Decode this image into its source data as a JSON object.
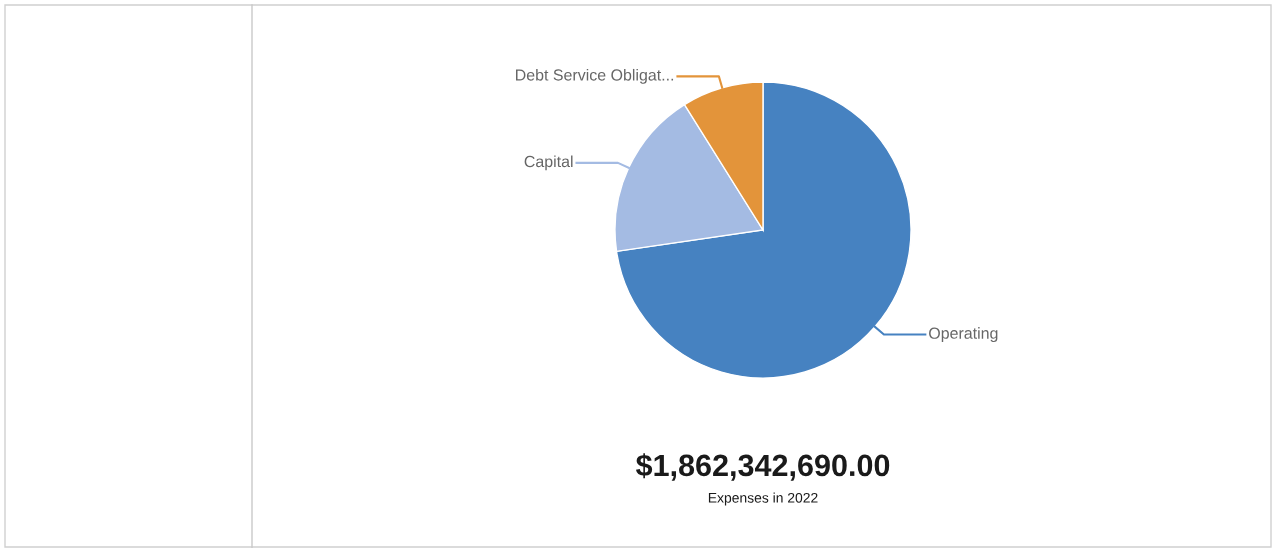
{
  "chart_data": {
    "type": "pie",
    "categories": [
      "Operating",
      "Capital",
      "Debt Service Obligat..."
    ],
    "values": [
      72.7,
      18.4,
      8.9
    ],
    "colors": [
      "#4682c1",
      "#a4bbe3",
      "#e3943a"
    ],
    "annotations": [
      "$1,862,342,690.00",
      "Expenses in 2022"
    ],
    "legend": false
  }
}
